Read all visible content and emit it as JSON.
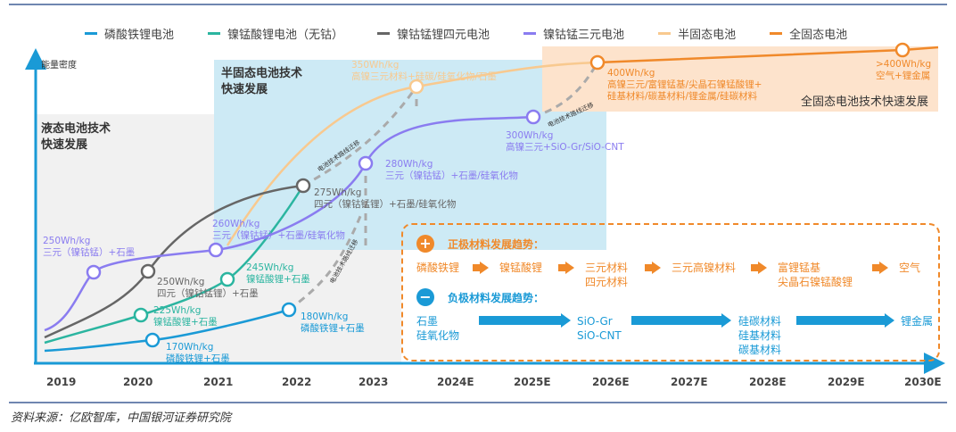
{
  "legend": [
    {
      "label": "磷酸铁锂电池",
      "color": "#1a9ad6"
    },
    {
      "label": "镍锰酸锂电池（无钴）",
      "color": "#2bb5a0"
    },
    {
      "label": "镍钴锰锂四元电池",
      "color": "#666666"
    },
    {
      "label": "镍钴锰三元电池",
      "color": "#8a7cf0"
    },
    {
      "label": "半固态电池",
      "color": "#f8c98f"
    },
    {
      "label": "全固态电池",
      "color": "#f0892a"
    }
  ],
  "yaxis_label": "能量密度",
  "years": [
    "2019",
    "2020",
    "2021",
    "2022",
    "2023",
    "2024E",
    "2025E",
    "2026E",
    "2027E",
    "2028E",
    "2029E",
    "2030E"
  ],
  "regions": {
    "liquid": "液态电池技术\n快速发展",
    "semi": "半固态电池技术\n快速发展",
    "solid": "全固态电池技术快速发展"
  },
  "migration_label": "电池技术路线迁移",
  "nodes": {
    "lfp1": {
      "value": "170Wh/kg",
      "material": "磷酸铁锂+石墨"
    },
    "lfp2": {
      "value": "180Wh/kg",
      "material": "磷酸铁锂+石墨"
    },
    "lmfp1": {
      "value": "225Wh/kg",
      "material": "镍锰酸锂+石墨"
    },
    "lmfp2": {
      "value": "245Wh/kg",
      "material": "镍锰酸锂+石墨"
    },
    "quad1": {
      "value": "250Wh/kg",
      "material": "四元（镍钴锰锂）+石墨"
    },
    "quad2": {
      "value": "275Wh/kg",
      "material": "四元（镍钴锰锂）+石墨/硅氧化物"
    },
    "ncm1": {
      "value": "250Wh/kg",
      "material": "三元（镍钴锰）+石墨"
    },
    "ncm2": {
      "value": "260Wh/kg",
      "material": "三元（镍钴锰）+石墨/硅氧化物"
    },
    "ncm3": {
      "value": "280Wh/kg",
      "material": "三元（镍钴锰）+石墨/硅氧化物"
    },
    "ncm4": {
      "value": "300Wh/kg",
      "material": "高镍三元+SiO-Gr/SiO-CNT"
    },
    "semi1": {
      "value": "350Wh/kg",
      "material": "高镍三元材料+硅碳/硅氧化物/石墨"
    },
    "solid1": {
      "value": "400Wh/kg",
      "material": "高镍三元/富锂锰基/尖晶石镍锰酸锂+\n硅基材料/碳基材料/锂金属/硅碳材料"
    },
    "solid2": {
      "value": ">400Wh/kg",
      "material": "空气+锂金属"
    }
  },
  "trends": {
    "cathode_title": "正极材料发展趋势：",
    "cathode": [
      "磷酸铁锂",
      "镍锰酸锂",
      "三元材料\n四元材料",
      "三元高镍材料",
      "富锂锰基\n尖晶石镍锰酸锂",
      "空气"
    ],
    "anode_title": "负极材料发展趋势：",
    "anode": [
      "石墨\n硅氧化物",
      "SiO-Gr\nSiO-CNT",
      "硅碳材料\n硅基材料\n碳基材料",
      "锂金属"
    ],
    "plus": "+",
    "minus": "−"
  },
  "source": "资料来源：亿欧智库，中国银河证券研究院"
}
